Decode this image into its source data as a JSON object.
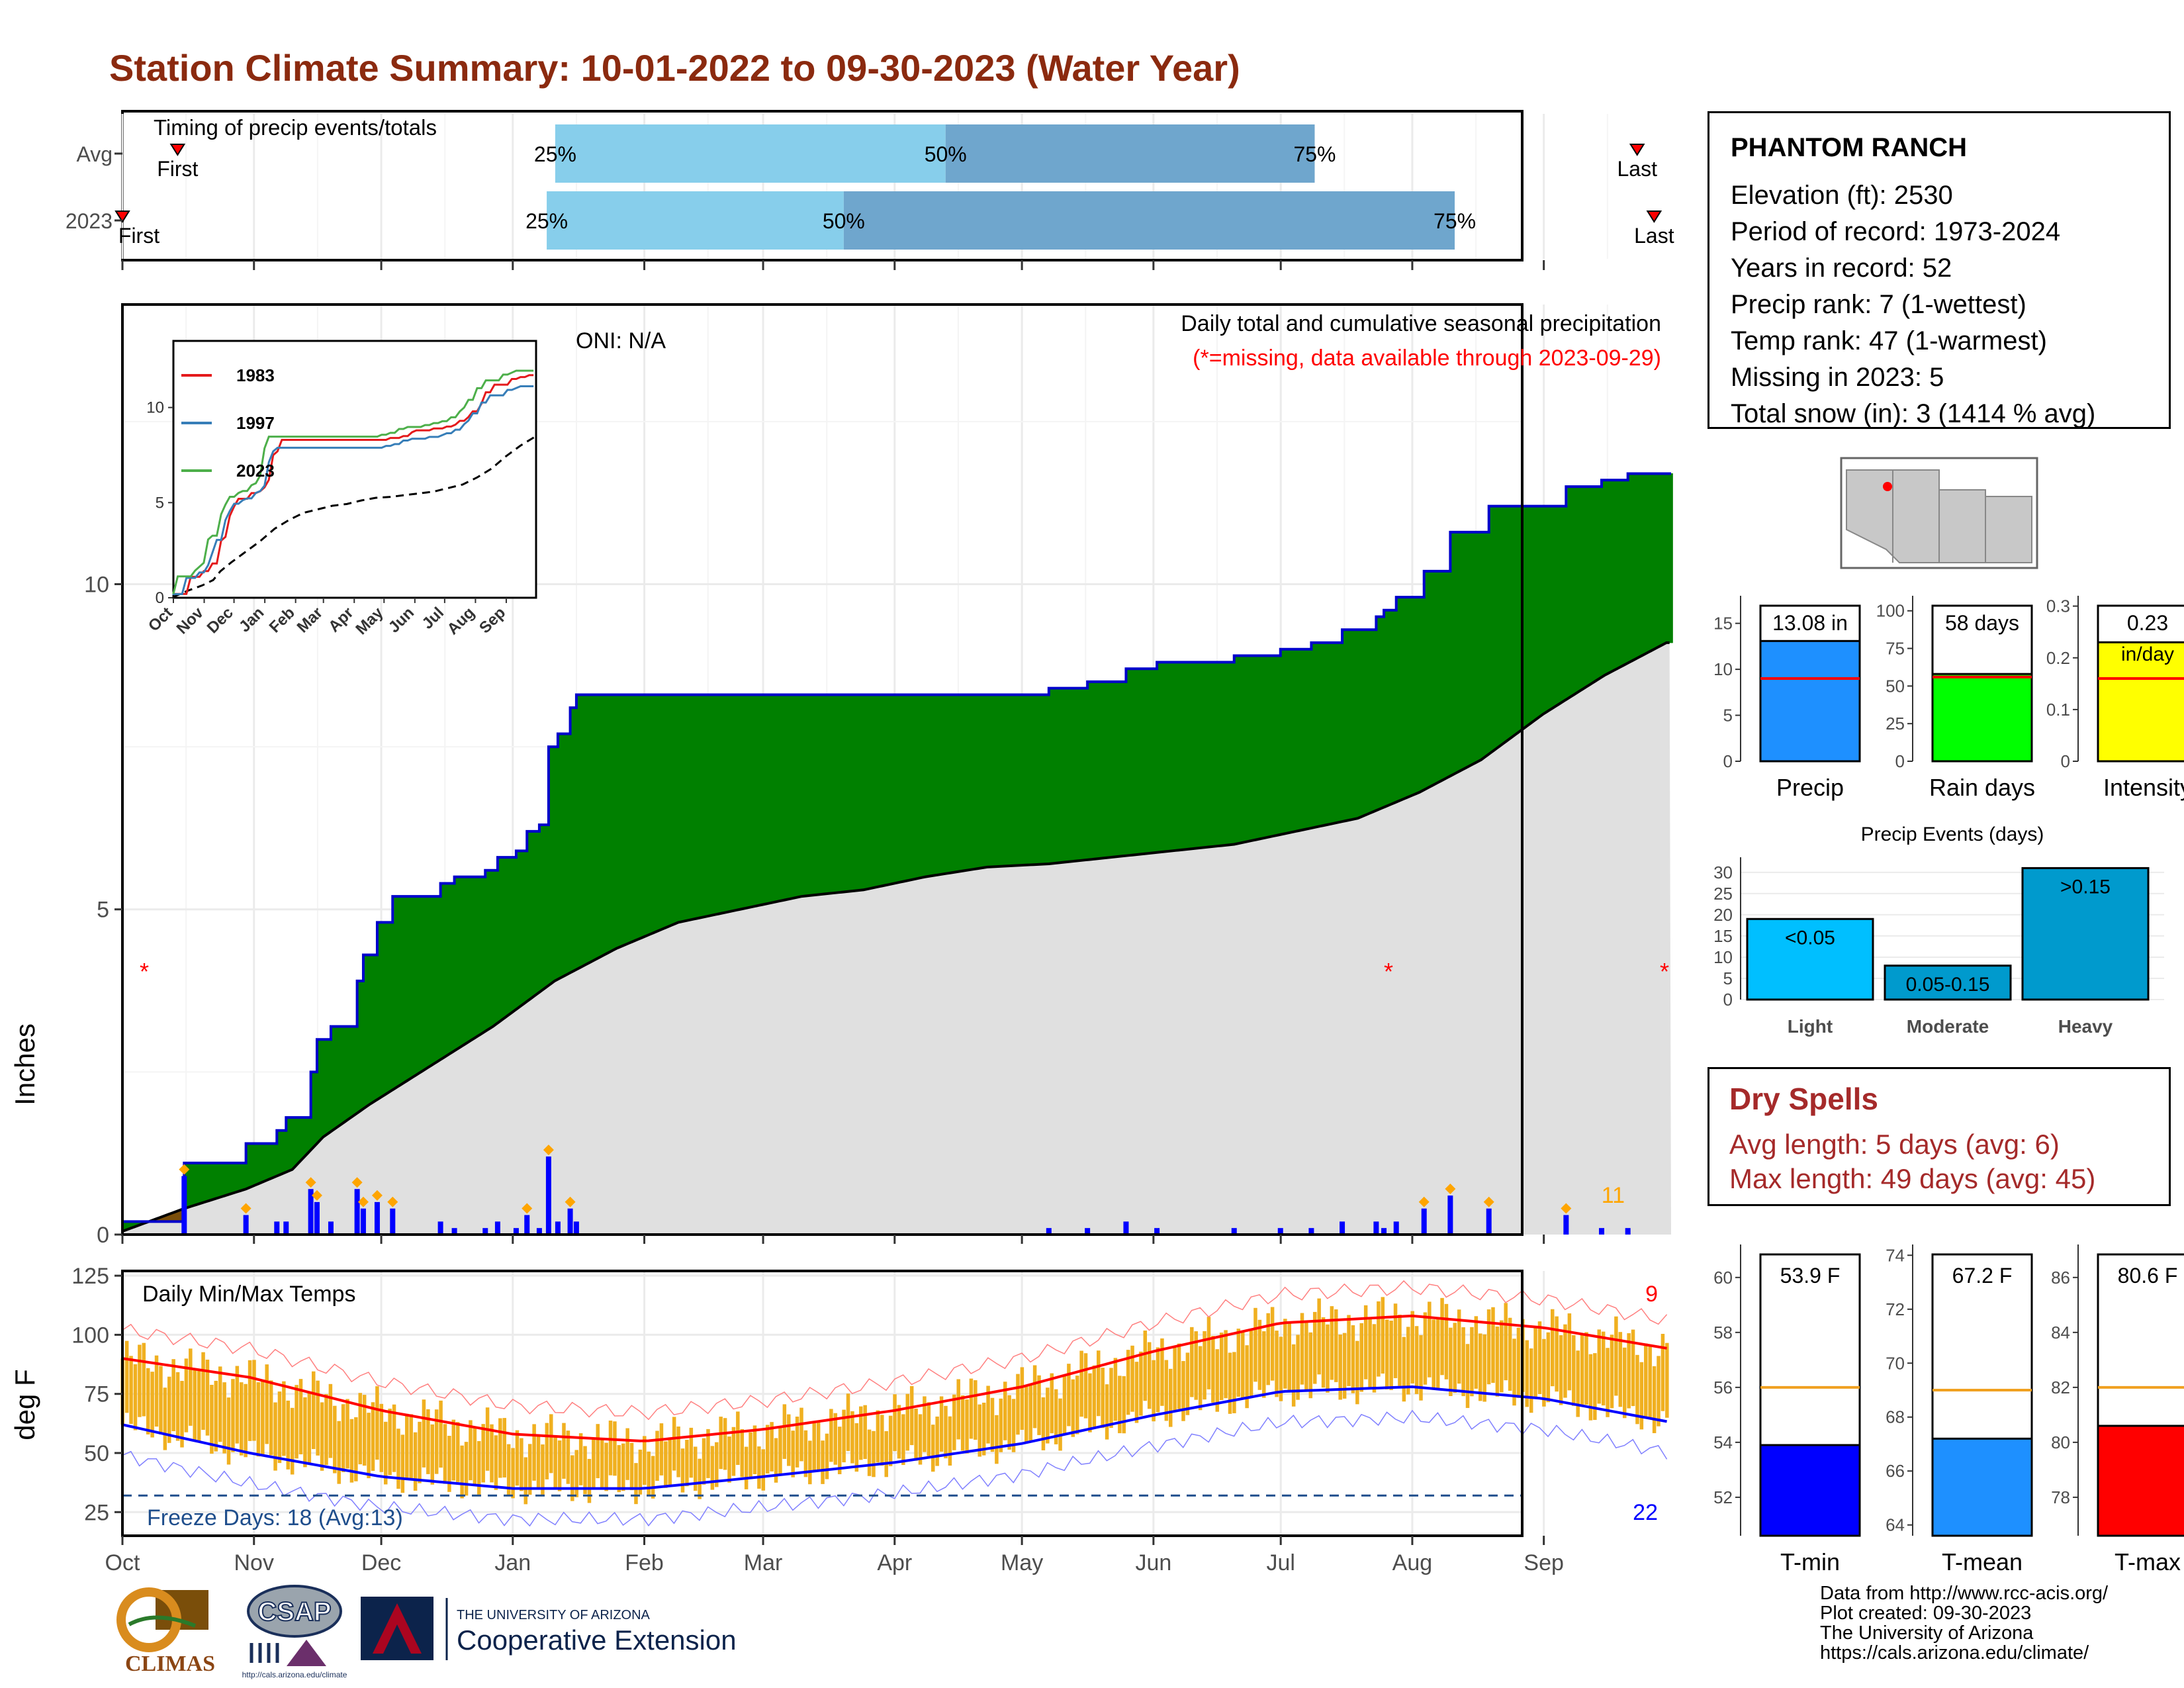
{
  "title": "Station Climate Summary: 10-01-2022 to 09-30-2023 (Water Year)",
  "station": {
    "name": "PHANTOM RANCH",
    "lines": [
      "Elevation (ft): 2530",
      "Period of record: 1973-2024",
      "Years in record: 52",
      "Precip rank: 7 (1-wettest)",
      "Temp rank: 47 (1-warmest)",
      "Missing in 2023: 5",
      "Total snow (in): 3 (1414 % avg)"
    ]
  },
  "dry_spells": {
    "title": "Dry Spells",
    "lines": [
      "Avg length: 5 days (avg: 6)",
      "Max length: 49 days (avg: 45)"
    ]
  },
  "credits": [
    "Data from http://www.rcc-acis.org/",
    "Plot created: 09-30-2023",
    "The University of Arizona",
    "https://cals.arizona.edu/climate/"
  ],
  "logos": {
    "climas": "CLIMAS",
    "csap": "CSAP",
    "csap_url": "http://cals.arizona.edu/climate",
    "ua_small": "THE UNIVERSITY OF ARIZONA",
    "ua_big": "Cooperative Extension"
  },
  "colors": {
    "cum_precip_above": "#008000",
    "cum_precip_below": "#7a4e0a",
    "avg_fill": "#e0e0e0",
    "daily_bar": "#0000ff",
    "temp_bar": "#f0b020",
    "tmax_line": "#ff0000",
    "tmin_line": "#0000ff",
    "timing_light": "#87ceeb",
    "timing_dark": "#6fa6cd"
  },
  "chart_data": [
    {
      "id": "timing",
      "type": "bar",
      "title": "Timing of precip events/totals",
      "rows": [
        {
          "label": "Avg",
          "first": "Oct 14",
          "q25": "Jan 11",
          "q50": "Apr 13",
          "q75": "Jul 9",
          "last": "Sep 23",
          "first_label": "First",
          "last_label": "Last",
          "q_labels": [
            "25%",
            "50%",
            "75%"
          ]
        },
        {
          "label": "2023",
          "first": "Oct 1",
          "q25": "Jan 9",
          "q50": "Mar 20",
          "q75": "Aug 11",
          "last": "Sep 27",
          "first_label": "First",
          "last_label": "Last",
          "q_labels": [
            "25%",
            "50%",
            "75%"
          ]
        }
      ]
    },
    {
      "id": "precip",
      "type": "area",
      "title": "Daily total and cumulative seasonal precipitation",
      "subtitle": "(*=missing, data available through 2023-09-29)",
      "annotation": "ONI: N/A",
      "ylabel": "Inches",
      "ylim": [
        0,
        14
      ],
      "yticks": [
        0,
        5,
        10
      ],
      "x_months": [
        "Oct",
        "Nov",
        "Dec",
        "Jan",
        "Feb",
        "Mar",
        "Apr",
        "May",
        "Jun",
        "Jul",
        "Aug",
        "Sep"
      ],
      "cumulative_2023": [
        [
          0,
          0.2
        ],
        [
          15,
          0.2
        ],
        [
          39,
          0.2
        ],
        [
          40,
          1.1
        ],
        [
          70,
          1.1
        ],
        [
          80,
          1.4
        ],
        [
          100,
          1.6
        ],
        [
          106,
          1.8
        ],
        [
          118,
          1.8
        ],
        [
          122,
          2.5
        ],
        [
          126,
          3.0
        ],
        [
          131,
          3.0
        ],
        [
          135,
          3.2
        ],
        [
          147,
          3.2
        ],
        [
          152,
          3.9
        ],
        [
          156,
          4.3
        ],
        [
          160,
          4.3
        ],
        [
          165,
          4.8
        ],
        [
          172,
          4.8
        ],
        [
          175,
          5.2
        ],
        [
          200,
          5.2
        ],
        [
          206,
          5.4
        ],
        [
          215,
          5.5
        ],
        [
          235,
          5.6
        ],
        [
          243,
          5.8
        ],
        [
          255,
          5.9
        ],
        [
          262,
          6.2
        ],
        [
          270,
          6.3
        ],
        [
          276,
          7.5
        ],
        [
          282,
          7.7
        ],
        [
          290,
          8.1
        ],
        [
          294,
          8.3
        ],
        [
          320,
          8.3
        ],
        [
          360,
          8.3
        ],
        [
          400,
          8.3
        ],
        [
          440,
          8.3
        ],
        [
          470,
          8.3
        ],
        [
          495,
          8.3
        ],
        [
          545,
          8.3
        ],
        [
          600,
          8.4
        ],
        [
          625,
          8.5
        ],
        [
          650,
          8.7
        ],
        [
          670,
          8.8
        ],
        [
          700,
          8.8
        ],
        [
          720,
          8.9
        ],
        [
          750,
          9.0
        ],
        [
          770,
          9.1
        ],
        [
          780,
          9.1
        ],
        [
          790,
          9.3
        ],
        [
          806,
          9.3
        ],
        [
          812,
          9.5
        ],
        [
          817,
          9.6
        ],
        [
          825,
          9.8
        ],
        [
          836,
          9.8
        ],
        [
          843,
          10.2
        ],
        [
          852,
          10.2
        ],
        [
          860,
          10.8
        ],
        [
          878,
          10.8
        ],
        [
          885,
          11.2
        ],
        [
          920,
          11.2
        ],
        [
          935,
          11.5
        ],
        [
          958,
          11.6
        ],
        [
          975,
          11.7
        ],
        [
          1003,
          11.7
        ]
      ],
      "average_cumulative": [
        [
          0,
          0.05
        ],
        [
          40,
          0.4
        ],
        [
          80,
          0.7
        ],
        [
          110,
          1.0
        ],
        [
          130,
          1.5
        ],
        [
          160,
          2.0
        ],
        [
          200,
          2.6
        ],
        [
          240,
          3.2
        ],
        [
          280,
          3.9
        ],
        [
          320,
          4.4
        ],
        [
          360,
          4.8
        ],
        [
          400,
          5.0
        ],
        [
          440,
          5.2
        ],
        [
          480,
          5.3
        ],
        [
          520,
          5.5
        ],
        [
          560,
          5.65
        ],
        [
          600,
          5.7
        ],
        [
          640,
          5.8
        ],
        [
          680,
          5.9
        ],
        [
          720,
          6.0
        ],
        [
          760,
          6.2
        ],
        [
          800,
          6.4
        ],
        [
          840,
          6.8
        ],
        [
          880,
          7.3
        ],
        [
          920,
          8.0
        ],
        [
          960,
          8.6
        ],
        [
          1000,
          9.1
        ]
      ],
      "legend_note": "11",
      "inset": {
        "type": "line",
        "series": [
          {
            "name": "1983"
          },
          {
            "name": "1997"
          },
          {
            "name": "2023"
          }
        ],
        "yticks": [
          0,
          5,
          10
        ],
        "x_months": [
          "Oct",
          "Nov",
          "Dec",
          "Jan",
          "Feb",
          "Mar",
          "Apr",
          "May",
          "Jun",
          "Jul",
          "Aug",
          "Sep"
        ]
      }
    },
    {
      "id": "temps",
      "type": "bar",
      "title": "Daily Min/Max Temps",
      "ylabel": "deg F",
      "ylim": [
        15,
        125
      ],
      "yticks": [
        25,
        50,
        75,
        100,
        125
      ],
      "x_months": [
        "Oct",
        "Nov",
        "Dec",
        "Jan",
        "Feb",
        "Mar",
        "Apr",
        "May",
        "Jun",
        "Jul",
        "Aug",
        "Sep"
      ],
      "freeze_label": "Freeze Days: 18 (Avg:13)",
      "freeze_line": 32,
      "count_high": "9",
      "count_low": "22",
      "tmax_normal": [
        [
          0,
          90
        ],
        [
          30,
          82
        ],
        [
          61,
          68
        ],
        [
          92,
          58
        ],
        [
          123,
          55
        ],
        [
          151,
          60
        ],
        [
          182,
          68
        ],
        [
          212,
          78
        ],
        [
          243,
          93
        ],
        [
          273,
          105
        ],
        [
          304,
          108
        ],
        [
          335,
          103
        ],
        [
          365,
          94
        ]
      ],
      "tmin_normal": [
        [
          0,
          62
        ],
        [
          30,
          50
        ],
        [
          61,
          40
        ],
        [
          92,
          35
        ],
        [
          123,
          35
        ],
        [
          151,
          40
        ],
        [
          182,
          46
        ],
        [
          212,
          54
        ],
        [
          243,
          66
        ],
        [
          273,
          76
        ],
        [
          304,
          78
        ],
        [
          335,
          73
        ],
        [
          365,
          63
        ]
      ]
    },
    {
      "id": "summary-bars",
      "type": "bar",
      "categories": [
        "Precip",
        "Rain days",
        "Intensity"
      ],
      "values": [
        13.08,
        58,
        0.23
      ],
      "labels": [
        "13.08 in",
        "58 days",
        "0.23",
        "in/day"
      ],
      "averages": [
        9.0,
        56,
        0.16
      ],
      "ylims": [
        [
          0,
          18
        ],
        [
          0,
          110
        ],
        [
          0,
          0.32
        ]
      ],
      "yticks": [
        [
          0,
          5,
          10,
          15
        ],
        [
          0,
          25,
          50,
          75,
          100
        ],
        [
          0.0,
          0.1,
          0.2,
          0.3
        ]
      ]
    },
    {
      "id": "precip-events",
      "type": "bar",
      "title": "Precip Events (days)",
      "categories": [
        "Light",
        "Moderate",
        "Heavy"
      ],
      "values": [
        19,
        8,
        31
      ],
      "labels": [
        "<0.05",
        "0.05-0.15",
        ">0.15"
      ],
      "yticks": [
        0,
        5,
        10,
        15,
        20,
        25,
        30
      ]
    },
    {
      "id": "temp-bars",
      "type": "bar",
      "categories": [
        "T-min",
        "T-mean",
        "T-max"
      ],
      "values": [
        53.9,
        67.2,
        80.6
      ],
      "labels": [
        "53.9 F",
        "67.2 F",
        "80.6 F"
      ],
      "averages": [
        56,
        69,
        82
      ],
      "ylims": [
        [
          50.6,
          61.2
        ],
        [
          63.6,
          74.4
        ],
        [
          76.6,
          87.2
        ]
      ],
      "yticks": [
        [
          52,
          54,
          56,
          58,
          60
        ],
        [
          64,
          66,
          68,
          70,
          72,
          74
        ],
        [
          78,
          80,
          82,
          84,
          86
        ]
      ]
    }
  ]
}
